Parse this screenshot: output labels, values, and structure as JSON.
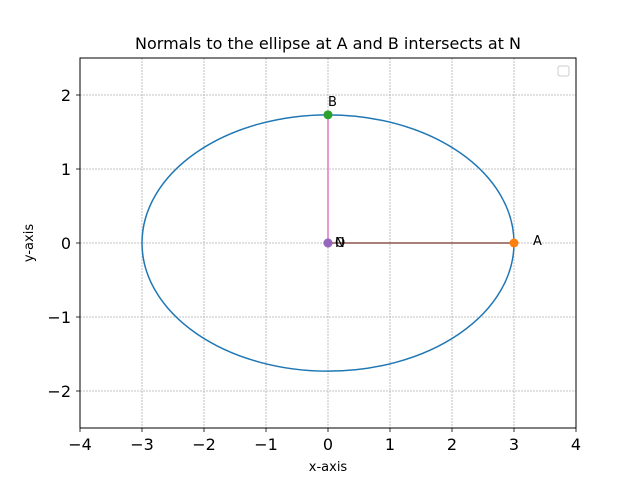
{
  "chart_data": {
    "type": "line",
    "title": "Normals to the ellipse at A and B intersects at N",
    "xlabel": "x-axis",
    "ylabel": "y-axis",
    "xlim": [
      -4,
      4
    ],
    "ylim": [
      -2.5,
      2.5
    ],
    "xticks": [
      -4,
      -3,
      -2,
      -1,
      0,
      1,
      2,
      3,
      4
    ],
    "xtick_labels": [
      "−4",
      "−3",
      "−2",
      "−1",
      "0",
      "1",
      "2",
      "3",
      "4"
    ],
    "yticks": [
      -2,
      -1,
      0,
      1,
      2
    ],
    "ytick_labels": [
      "−2",
      "−1",
      "0",
      "1",
      "2"
    ],
    "grid": true,
    "legend": "top-right",
    "colors": {
      "ellipse": "#1f77b4",
      "point_A": "#ff7f0e",
      "point_B": "#2ca02c",
      "normal_A": "#8c564b",
      "normal_B": "#e377c2",
      "point_N": "#9467bd"
    },
    "ellipse": {
      "a": 3,
      "b": 1.732
    },
    "segments": [
      {
        "from": [
          3,
          0
        ],
        "to": [
          0,
          0
        ],
        "color": "#8c564b"
      },
      {
        "from": [
          0,
          1.732
        ],
        "to": [
          0,
          0
        ],
        "color": "#e377c2"
      }
    ],
    "points": [
      {
        "label": "A",
        "x": 3,
        "y": 0,
        "color": "#ff7f0e"
      },
      {
        "label": "B",
        "x": 0,
        "y": 1.732,
        "color": "#2ca02c"
      },
      {
        "label": "N",
        "x": 0,
        "y": 0,
        "color": "#9467bd"
      },
      {
        "label": "O",
        "x": 0,
        "y": 0,
        "color": "#9467bd"
      }
    ]
  }
}
